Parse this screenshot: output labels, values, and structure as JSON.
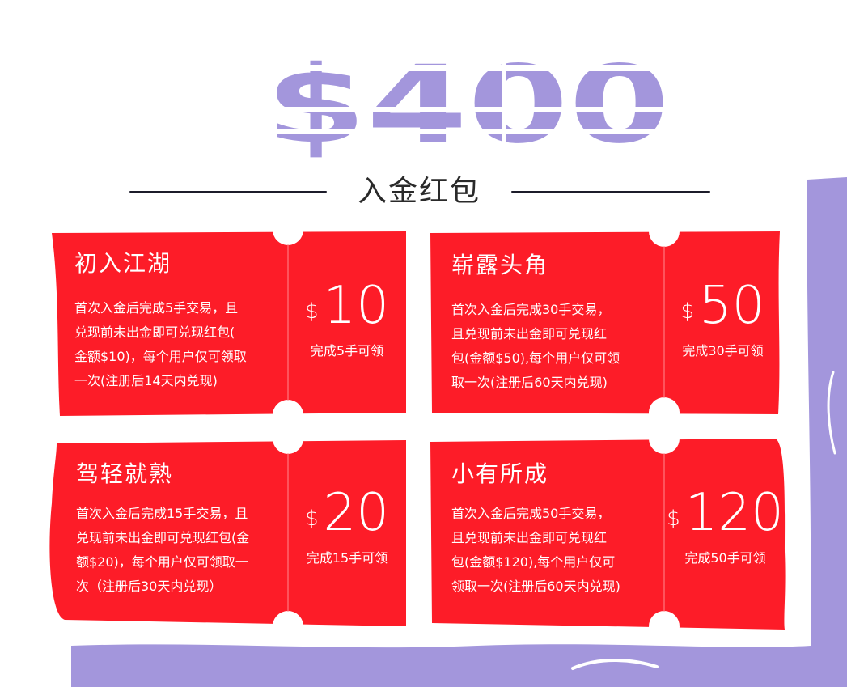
{
  "header": {
    "hero_text": "$400",
    "section_title": "入金红包"
  },
  "cards": [
    {
      "name": "初入江湖",
      "description_lines": [
        "首次入金后完成5手交易，且",
        "兑现前未出金即可兑现红包(",
        "金额$10)，每个用户仅可领取",
        "一次(注册后14天内兑现)"
      ],
      "currency": "$",
      "amount": "10",
      "condition": "完成5手可领"
    },
    {
      "name": "崭露头角",
      "description_lines": [
        "首次入金后完成30手交易，",
        "且兑现前未出金即可兑现红",
        "包(金额$50),每个用户仅可领",
        "取一次(注册后60天内兑现)"
      ],
      "currency": "$",
      "amount": "50",
      "condition": "完成30手可领"
    },
    {
      "name": "驾轻就熟",
      "description_lines": [
        "首次入金后完成15手交易，且",
        "兑现前未出金即可兑现红包(金",
        "额$20)，每个用户仅可领取一",
        "次（注册后30天内兑现）"
      ],
      "currency": "$",
      "amount": "20",
      "condition": "完成15手可领"
    },
    {
      "name": "小有所成",
      "description_lines": [
        "首次入金后完成50手交易，",
        "且兑现前未出金即可兑现红",
        "包(金额$120),每个用户仅可",
        "领取一次(注册后60天内兑现)"
      ],
      "currency": "$",
      "amount": "120",
      "condition": "完成50手可领"
    }
  ],
  "colors": {
    "card_red": "#fd1c28",
    "accent_purple": "#a396dc",
    "text_white": "#ffffff",
    "title_dark": "#2a2a2a"
  }
}
